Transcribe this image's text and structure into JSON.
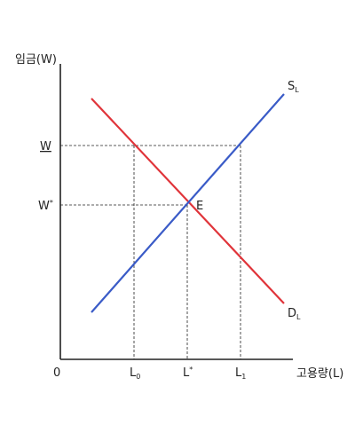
{
  "axes": {
    "y_title": "임금(W)",
    "x_title": "고용량(L)",
    "origin": "0"
  },
  "wage_labels": {
    "bar_w": "W",
    "w_star_base": "W",
    "w_star_sup": "*"
  },
  "employment_labels": {
    "l0_base": "L",
    "l0_sub": "0",
    "l_star_base": "L",
    "l_star_sup": "*",
    "l1_base": "L",
    "l1_sub": "1"
  },
  "curves": {
    "supply": {
      "base": "S",
      "sub": "L",
      "color": "#3a5bc7"
    },
    "demand": {
      "base": "D",
      "sub": "L",
      "color": "#e0343a"
    },
    "equilibrium": "E"
  },
  "colors": {
    "axis": "#222222",
    "guide": "#222222"
  }
}
